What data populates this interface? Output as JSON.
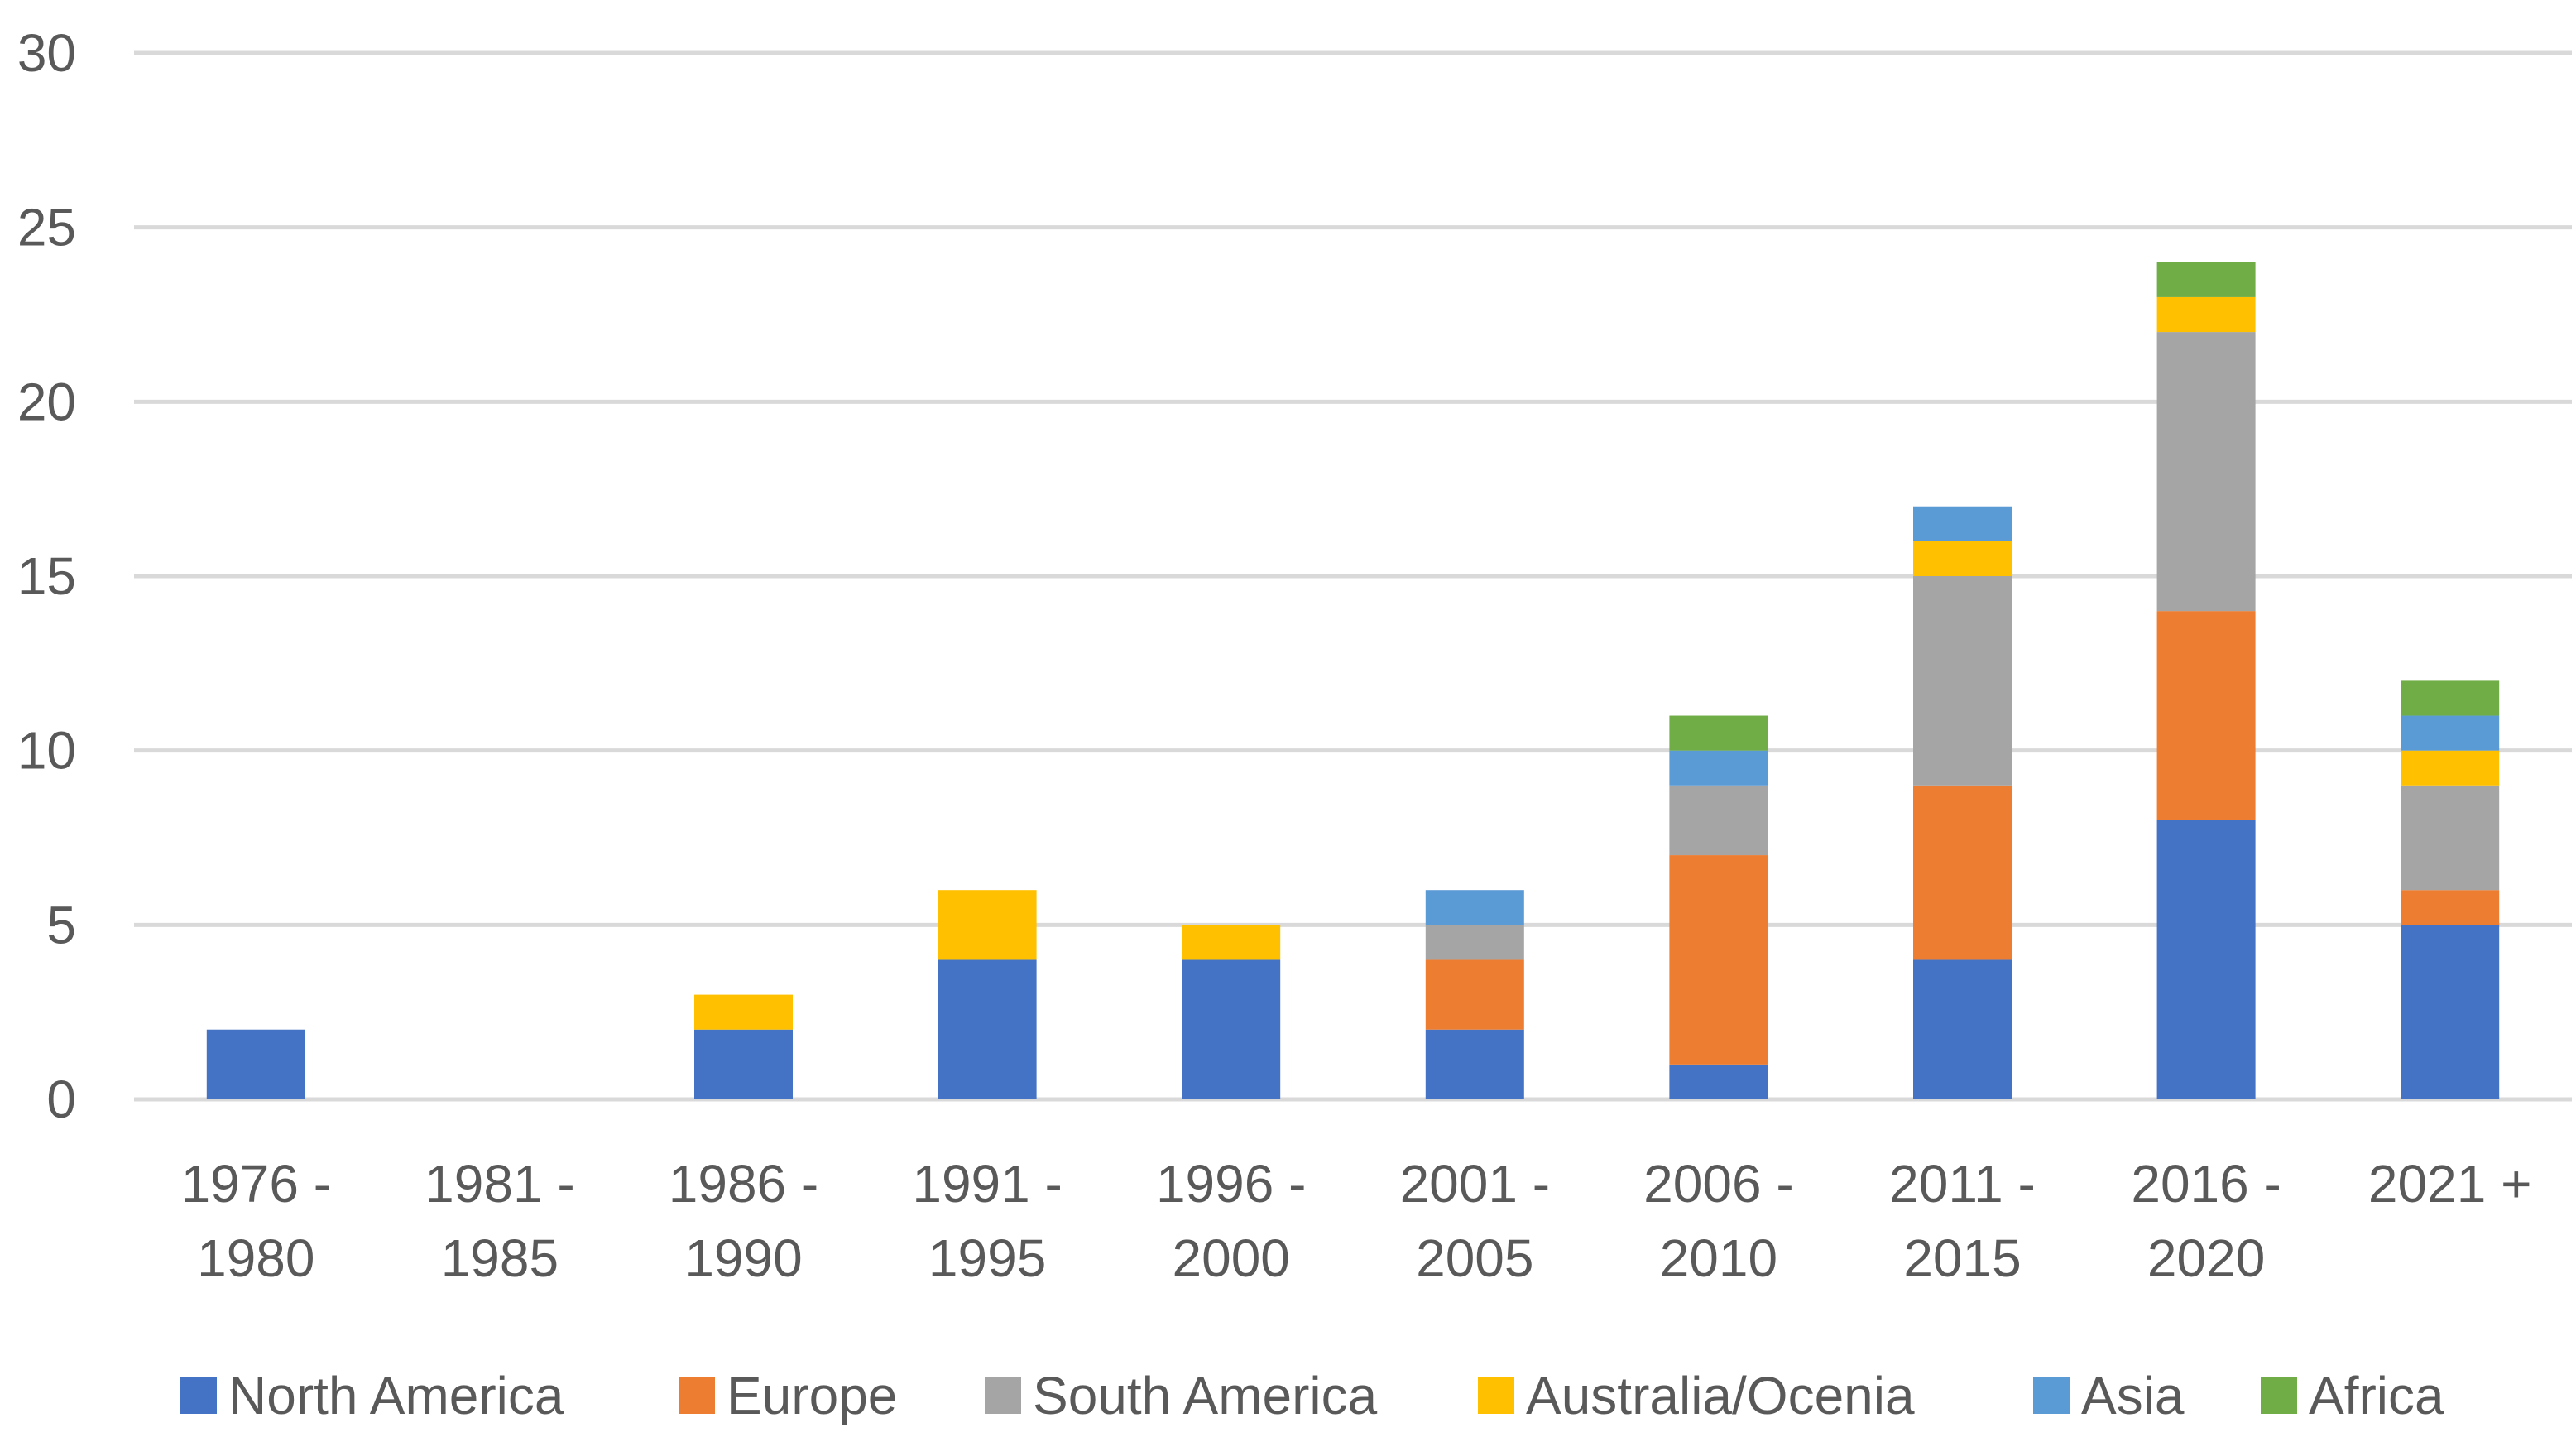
{
  "chart_data": {
    "type": "bar",
    "stacked": true,
    "title": "",
    "xlabel": "",
    "ylabel": "",
    "ylim": [
      0,
      30
    ],
    "yticks": [
      0,
      5,
      10,
      15,
      20,
      25,
      30
    ],
    "grid": true,
    "legend_position": "bottom",
    "categories": [
      [
        "1976 -",
        "1980"
      ],
      [
        "1981 -",
        "1985"
      ],
      [
        "1986 -",
        "1990"
      ],
      [
        "1991 -",
        "1995"
      ],
      [
        "1996 -",
        "2000"
      ],
      [
        "2001 -",
        "2005"
      ],
      [
        "2006 -",
        "2010"
      ],
      [
        "2011 -",
        "2015"
      ],
      [
        "2016 -",
        "2020"
      ],
      [
        "2021 +"
      ]
    ],
    "series": [
      {
        "name": "North America",
        "color": "#4472c4",
        "values": [
          2,
          0,
          2,
          4,
          4,
          2,
          1,
          4,
          8,
          5
        ]
      },
      {
        "name": "Europe",
        "color": "#ed7d31",
        "values": [
          0,
          0,
          0,
          0,
          0,
          2,
          6,
          5,
          6,
          1
        ]
      },
      {
        "name": "South America",
        "color": "#a5a5a5",
        "values": [
          0,
          0,
          0,
          0,
          0,
          1,
          2,
          6,
          8,
          3
        ]
      },
      {
        "name": "Australia/Ocenia",
        "color": "#ffc000",
        "values": [
          0,
          0,
          1,
          2,
          1,
          0,
          0,
          1,
          1,
          1
        ]
      },
      {
        "name": "Asia",
        "color": "#5b9bd5",
        "values": [
          0,
          0,
          0,
          0,
          0,
          1,
          1,
          1,
          0,
          1
        ]
      },
      {
        "name": "Africa",
        "color": "#70ad47",
        "values": [
          0,
          0,
          0,
          0,
          0,
          0,
          1,
          0,
          1,
          1
        ]
      }
    ]
  }
}
